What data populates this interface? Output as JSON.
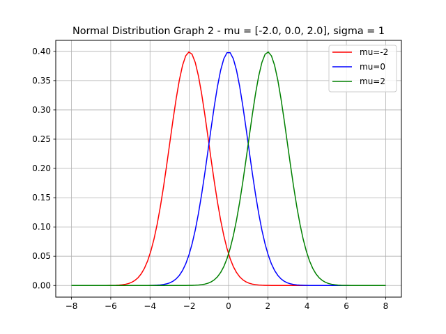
{
  "chart_data": {
    "type": "line",
    "title": "Normal Distribution Graph 2 - mu = [-2.0, 0.0, 2.0], sigma = 1",
    "xlabel": "",
    "ylabel": "",
    "xlim": [
      -8.8,
      8.8
    ],
    "ylim": [
      -0.0199,
      0.4188
    ],
    "xticks": [
      -8,
      -6,
      -4,
      -2,
      0,
      2,
      4,
      6,
      8
    ],
    "xtick_labels": [
      "−8",
      "−6",
      "−4",
      "−2",
      "0",
      "2",
      "4",
      "6",
      "8"
    ],
    "yticks": [
      0.0,
      0.05,
      0.1,
      0.15,
      0.2,
      0.25,
      0.3,
      0.35,
      0.4
    ],
    "ytick_labels": [
      "0.00",
      "0.05",
      "0.10",
      "0.15",
      "0.20",
      "0.25",
      "0.30",
      "0.35",
      "0.40"
    ],
    "grid": true,
    "legend_position": "top-right",
    "sigma": 1,
    "x_range": [
      -8,
      8
    ],
    "series": [
      {
        "name": "mu=-2",
        "mu": -2,
        "color": "#ff0000"
      },
      {
        "name": "mu=0",
        "mu": 0,
        "color": "#0000ff"
      },
      {
        "name": "mu=2",
        "mu": 2,
        "color": "#008000"
      }
    ]
  }
}
